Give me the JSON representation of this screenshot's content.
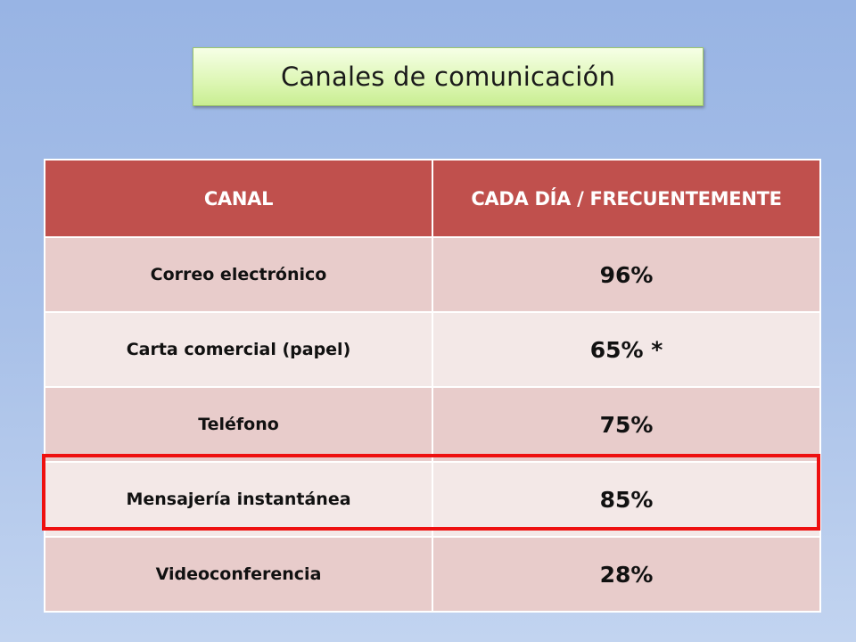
{
  "title": "Canales de comunicación",
  "table": {
    "headers": [
      "CANAL",
      "CADA DÍA / FRECUENTEMENTE"
    ],
    "rows": [
      {
        "canal": "Correo electrónico",
        "valor": "96%"
      },
      {
        "canal": "Carta comercial (papel)",
        "valor": "65% *"
      },
      {
        "canal": "Teléfono",
        "valor": "75%"
      },
      {
        "canal": "Mensajería instantánea",
        "valor": "85%",
        "highlighted": true
      },
      {
        "canal": "Videoconferencia",
        "valor": "28%"
      }
    ]
  },
  "colors": {
    "header_bg": "#c0504d",
    "row_odd": "#e8cccb",
    "row_even": "#f3e8e7",
    "highlight_border": "#ee1010",
    "title_bg": "#dff7b8"
  }
}
